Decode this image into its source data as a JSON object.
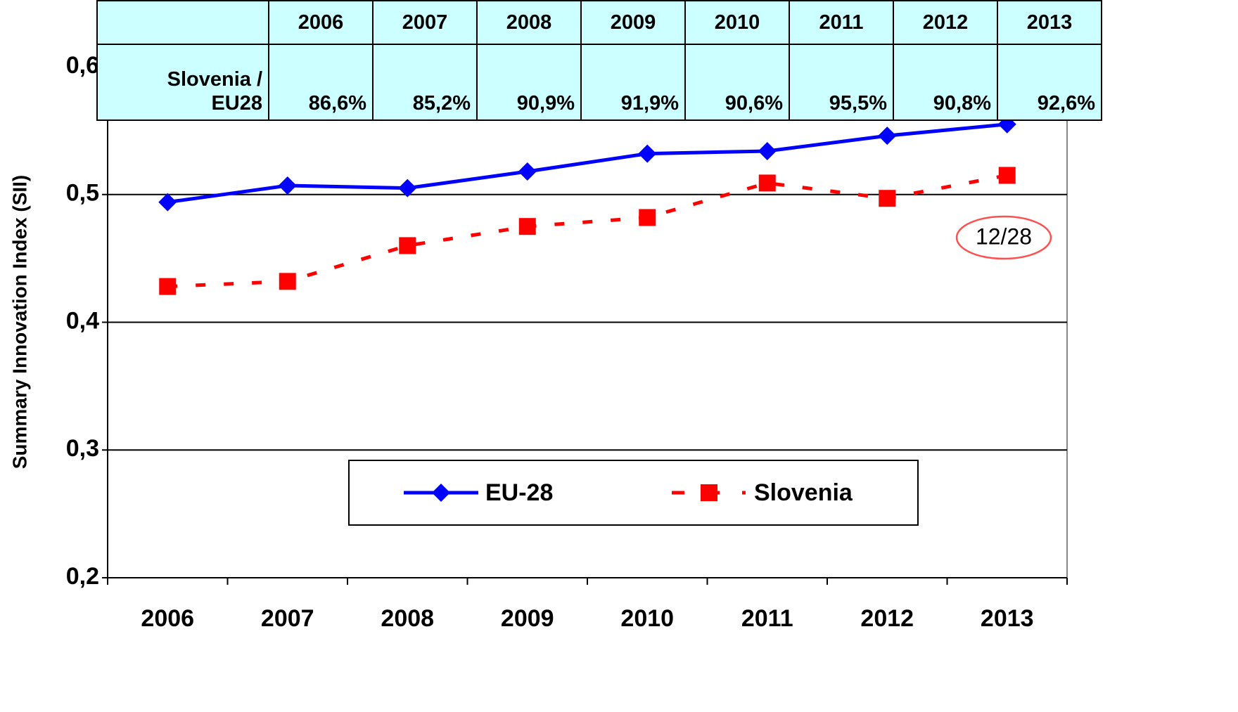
{
  "chart_data": {
    "type": "line",
    "y_label": "Summary Innovation Index (SII)",
    "categories": [
      "2006",
      "2007",
      "2008",
      "2009",
      "2010",
      "2011",
      "2012",
      "2013"
    ],
    "series": [
      {
        "name": "EU-28",
        "color": "#0000ff",
        "values": [
          0.494,
          0.507,
          0.505,
          0.518,
          0.532,
          0.534,
          0.546,
          0.555
        ]
      },
      {
        "name": "Slovenia",
        "color": "#ff0000",
        "values": [
          0.428,
          0.432,
          0.46,
          0.475,
          0.482,
          0.509,
          0.497,
          0.515
        ]
      }
    ],
    "ylim": [
      0.2,
      0.6
    ],
    "yticks": [
      {
        "value": 0.2,
        "label": "0,2"
      },
      {
        "value": 0.3,
        "label": "0,3"
      },
      {
        "value": 0.4,
        "label": "0,4"
      },
      {
        "value": 0.5,
        "label": "0,5"
      },
      {
        "value": 0.6,
        "label": "0,6"
      }
    ],
    "grid": true,
    "annotation": "12/28",
    "table": {
      "header": [
        "2006",
        "2007",
        "2008",
        "2009",
        "2010",
        "2011",
        "2012",
        "2013"
      ],
      "row_label": "Slovenia / EU28",
      "row": [
        "86,6%",
        "85,2%",
        "90,9%",
        "91,9%",
        "90,6%",
        "95,5%",
        "90,8%",
        "92,6%"
      ]
    }
  }
}
